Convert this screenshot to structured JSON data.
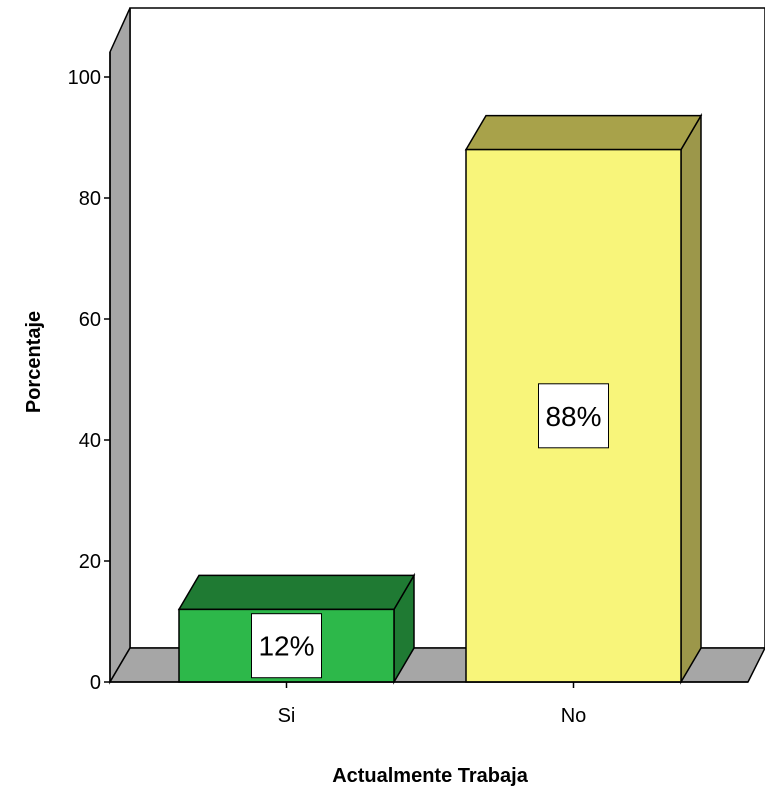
{
  "chart_data": {
    "type": "bar",
    "categories": [
      "Si",
      "No"
    ],
    "values": [
      12,
      88
    ],
    "data_labels": [
      "12%",
      "88%"
    ],
    "xlabel": "Actualmente Trabaja",
    "ylabel": "Porcentaje",
    "ylim": [
      0,
      100
    ],
    "yticks": [
      "0",
      "20",
      "40",
      "60",
      "80",
      "100"
    ],
    "grid": false,
    "colors": {
      "bar_front": [
        "#2db84a",
        "#f8f57a"
      ],
      "bar_top": [
        "#1f7a33",
        "#a8a24a"
      ],
      "bar_side": [
        "#1f7a33",
        "#9c974a"
      ],
      "floor_wall": "#a6a6a6"
    }
  }
}
